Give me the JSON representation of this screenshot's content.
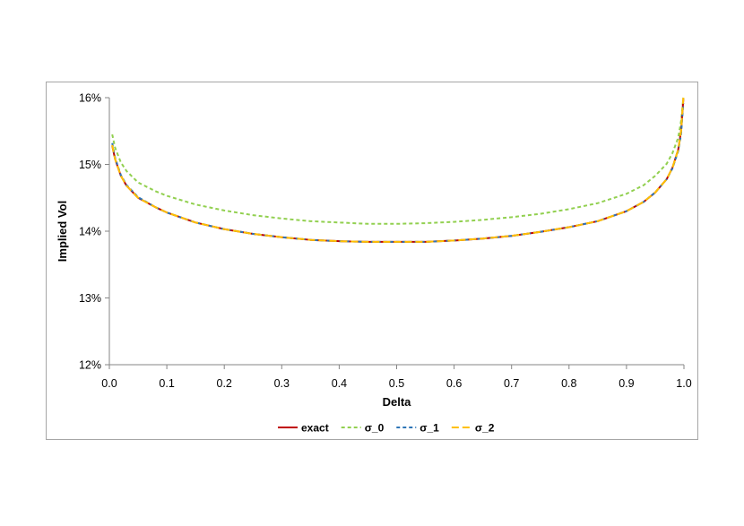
{
  "chart_data": {
    "type": "line",
    "title": "",
    "xlabel": "Delta",
    "ylabel": "Implied Vol",
    "xlim": [
      0.0,
      1.0
    ],
    "ylim": [
      0.12,
      0.16
    ],
    "x_ticks": [
      "0.0",
      "0.1",
      "0.2",
      "0.3",
      "0.4",
      "0.5",
      "0.6",
      "0.7",
      "0.8",
      "0.9",
      "1.0"
    ],
    "y_ticks": [
      "12%",
      "13%",
      "14%",
      "15%",
      "16%"
    ],
    "grid": false,
    "legend_position": "bottom",
    "x": [
      0.005,
      0.01,
      0.02,
      0.03,
      0.05,
      0.08,
      0.1,
      0.15,
      0.2,
      0.25,
      0.3,
      0.35,
      0.4,
      0.45,
      0.5,
      0.55,
      0.6,
      0.65,
      0.7,
      0.75,
      0.8,
      0.85,
      0.9,
      0.93,
      0.95,
      0.97,
      0.98,
      0.99,
      0.995,
      0.999
    ],
    "series": [
      {
        "name": "exact",
        "color": "#c00000",
        "dash": "solid",
        "values": [
          0.1528,
          0.1508,
          0.1483,
          0.1468,
          0.145,
          0.1436,
          0.1428,
          0.1413,
          0.1403,
          0.1396,
          0.1391,
          0.1387,
          0.1385,
          0.1384,
          0.1384,
          0.1384,
          0.1386,
          0.1389,
          0.1393,
          0.1399,
          0.1406,
          0.1415,
          0.143,
          0.1444,
          0.1458,
          0.1478,
          0.1495,
          0.1522,
          0.155,
          0.1598
        ]
      },
      {
        "name": "σ_0",
        "color": "#92d050",
        "dash": "dashed",
        "values": [
          0.1545,
          0.1525,
          0.1503,
          0.149,
          0.1473,
          0.146,
          0.1453,
          0.144,
          0.1431,
          0.1424,
          0.1419,
          0.1415,
          0.1413,
          0.1411,
          0.1411,
          0.1412,
          0.1414,
          0.1417,
          0.1421,
          0.1426,
          0.1433,
          0.1442,
          0.1456,
          0.1469,
          0.1483,
          0.1501,
          0.1517,
          0.154,
          0.1565,
          0.16
        ]
      },
      {
        "name": "σ_1",
        "color": "#2e75b6",
        "dash": "dashed",
        "values": [
          0.1532,
          0.151,
          0.1484,
          0.1469,
          0.1451,
          0.1436,
          0.1428,
          0.1413,
          0.1403,
          0.1396,
          0.1391,
          0.1387,
          0.1385,
          0.1384,
          0.1384,
          0.1384,
          0.1386,
          0.1389,
          0.1393,
          0.1399,
          0.1406,
          0.1415,
          0.143,
          0.1444,
          0.1458,
          0.1478,
          0.1494,
          0.152,
          0.1545,
          0.1592
        ]
      },
      {
        "name": "σ_2",
        "color": "#ffc000",
        "dash": "longdash",
        "values": [
          0.1529,
          0.1508,
          0.1483,
          0.1468,
          0.145,
          0.1436,
          0.1428,
          0.1413,
          0.1403,
          0.1396,
          0.1391,
          0.1387,
          0.1385,
          0.1384,
          0.1384,
          0.1384,
          0.1386,
          0.1389,
          0.1393,
          0.1399,
          0.1406,
          0.1415,
          0.143,
          0.1444,
          0.1458,
          0.1478,
          0.1495,
          0.1522,
          0.155,
          0.16
        ]
      }
    ]
  }
}
